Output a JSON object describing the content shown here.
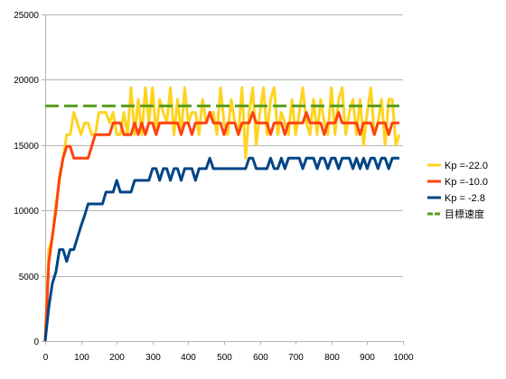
{
  "chart_data": {
    "type": "line",
    "xlim": [
      0,
      1000
    ],
    "ylim": [
      0,
      25000
    ],
    "xticks": [
      0,
      100,
      200,
      300,
      400,
      500,
      600,
      700,
      800,
      900,
      1000
    ],
    "yticks": [
      0,
      5000,
      10000,
      15000,
      20000,
      25000
    ],
    "grid": true,
    "legend": "right",
    "x": [
      0,
      10,
      20,
      30,
      40,
      50,
      60,
      70,
      80,
      90,
      100,
      110,
      120,
      130,
      140,
      150,
      160,
      170,
      180,
      190,
      200,
      210,
      220,
      230,
      240,
      250,
      260,
      270,
      280,
      290,
      300,
      310,
      320,
      330,
      340,
      350,
      360,
      370,
      380,
      390,
      400,
      410,
      420,
      430,
      440,
      450,
      460,
      470,
      480,
      490,
      500,
      510,
      520,
      530,
      540,
      550,
      560,
      570,
      580,
      590,
      600,
      610,
      620,
      630,
      640,
      650,
      660,
      670,
      680,
      690,
      700,
      710,
      720,
      730,
      740,
      750,
      760,
      770,
      780,
      790,
      800,
      810,
      820,
      830,
      840,
      850,
      860,
      870,
      880,
      890,
      900,
      910,
      920,
      930,
      940,
      950,
      960,
      970,
      980,
      990
    ],
    "series": [
      {
        "name": "Kp =-22.0",
        "color": "#ffd320",
        "dashed": false,
        "values": [
          0,
          7000,
          7900,
          10500,
          12300,
          14000,
          15800,
          15800,
          17500,
          16700,
          15800,
          16700,
          16700,
          15800,
          15800,
          17500,
          17500,
          17500,
          16700,
          17500,
          15800,
          15800,
          17500,
          15800,
          19400,
          15800,
          18500,
          15800,
          19400,
          16700,
          19400,
          15800,
          18500,
          17500,
          16700,
          19400,
          15800,
          18500,
          15800,
          19400,
          16700,
          17500,
          17500,
          15800,
          18500,
          16700,
          17500,
          17500,
          15800,
          19400,
          16700,
          15800,
          18500,
          16700,
          15800,
          19400,
          14000,
          17500,
          19400,
          15000,
          17500,
          19400,
          15800,
          18500,
          19400,
          15800,
          17500,
          16700,
          15800,
          18500,
          15800,
          17500,
          19400,
          16700,
          15800,
          18500,
          15800,
          18500,
          16700,
          15800,
          19400,
          15800,
          18500,
          19400,
          15800,
          17500,
          18500,
          15800,
          18500,
          15000,
          17500,
          19400,
          15800,
          16700,
          18500,
          15000,
          18500,
          18500,
          15000,
          15800
        ]
      },
      {
        "name": "Kp =-10.0",
        "color": "#ff420e",
        "dashed": false,
        "values": [
          0,
          6000,
          8000,
          10000,
          12500,
          14000,
          14900,
          14900,
          14000,
          14000,
          14000,
          14000,
          14000,
          14900,
          15800,
          15800,
          15800,
          15800,
          15800,
          16700,
          16700,
          16700,
          15800,
          15800,
          15800,
          16700,
          15800,
          16700,
          15800,
          16700,
          16700,
          15800,
          16700,
          16700,
          16700,
          16700,
          16700,
          16700,
          15800,
          16700,
          16700,
          15800,
          16700,
          16700,
          16700,
          16700,
          17500,
          16700,
          16700,
          16700,
          15800,
          16700,
          16700,
          16700,
          15800,
          16700,
          16700,
          16700,
          17500,
          16700,
          16700,
          16700,
          16700,
          15800,
          16700,
          16700,
          16700,
          15800,
          16700,
          16700,
          16700,
          16700,
          16700,
          17500,
          16700,
          16700,
          16700,
          16700,
          15800,
          16700,
          16700,
          16700,
          17500,
          16700,
          16700,
          16700,
          16700,
          16700,
          15800,
          16700,
          16700,
          16700,
          15800,
          16700,
          16700,
          16700,
          15800,
          16700,
          16700,
          16700
        ]
      },
      {
        "name": "Kp = -2.8",
        "color": "#004586",
        "dashed": false,
        "values": [
          0,
          2600,
          4400,
          5300,
          7000,
          7000,
          6100,
          7000,
          7000,
          7900,
          8800,
          9600,
          10500,
          10500,
          10500,
          10500,
          10500,
          11400,
          11400,
          11400,
          12300,
          11400,
          11400,
          11400,
          11400,
          12300,
          12300,
          12300,
          12300,
          12300,
          13200,
          13200,
          12300,
          13200,
          13200,
          12300,
          13200,
          13200,
          12300,
          13200,
          13200,
          13200,
          12300,
          13200,
          13200,
          13200,
          14000,
          13200,
          13200,
          13200,
          13200,
          13200,
          13200,
          13200,
          13200,
          13200,
          13200,
          14000,
          14000,
          13200,
          13200,
          13200,
          13200,
          14000,
          13200,
          13200,
          14000,
          13200,
          14000,
          14000,
          14000,
          14000,
          13200,
          14000,
          14000,
          14000,
          13200,
          14000,
          14000,
          13200,
          14000,
          14000,
          13200,
          14000,
          14000,
          14000,
          13200,
          14000,
          13200,
          14000,
          13200,
          14000,
          14000,
          13200,
          14000,
          14000,
          13200,
          14000,
          14000,
          14000
        ]
      },
      {
        "name": "目標速度",
        "color": "#579d1c",
        "dashed": true,
        "values": [
          18000,
          18000,
          18000,
          18000,
          18000,
          18000,
          18000,
          18000,
          18000,
          18000,
          18000,
          18000,
          18000,
          18000,
          18000,
          18000,
          18000,
          18000,
          18000,
          18000,
          18000,
          18000,
          18000,
          18000,
          18000,
          18000,
          18000,
          18000,
          18000,
          18000,
          18000,
          18000,
          18000,
          18000,
          18000,
          18000,
          18000,
          18000,
          18000,
          18000,
          18000,
          18000,
          18000,
          18000,
          18000,
          18000,
          18000,
          18000,
          18000,
          18000,
          18000,
          18000,
          18000,
          18000,
          18000,
          18000,
          18000,
          18000,
          18000,
          18000,
          18000,
          18000,
          18000,
          18000,
          18000,
          18000,
          18000,
          18000,
          18000,
          18000,
          18000,
          18000,
          18000,
          18000,
          18000,
          18000,
          18000,
          18000,
          18000,
          18000,
          18000,
          18000,
          18000,
          18000,
          18000,
          18000,
          18000,
          18000,
          18000,
          18000,
          18000,
          18000,
          18000,
          18000,
          18000,
          18000,
          18000,
          18000,
          18000,
          18000
        ]
      }
    ]
  }
}
